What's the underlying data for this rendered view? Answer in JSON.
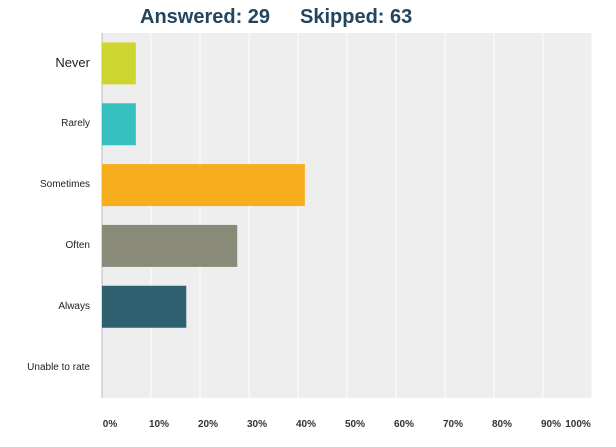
{
  "header": {
    "answered": "Answered: 29",
    "skipped": "Skipped: 63"
  },
  "chart_data": {
    "type": "bar",
    "orientation": "horizontal",
    "categories": [
      "Never",
      "Rarely",
      "Sometimes",
      "Often",
      "Always",
      "Unable to rate"
    ],
    "values": [
      6.9,
      6.9,
      41.4,
      27.6,
      17.2,
      0
    ],
    "colors": [
      "#cdd531",
      "#35bfbf",
      "#f6ae1f",
      "#898a78",
      "#2e6070",
      "#999999"
    ],
    "xlim": [
      0,
      100
    ],
    "xticks": [
      "0%",
      "10%",
      "20%",
      "30%",
      "40%",
      "50%",
      "60%",
      "70%",
      "80%",
      "90%",
      "100%"
    ],
    "grid": true,
    "background": "#eeeeee",
    "gridline_color": "#ffffff"
  }
}
